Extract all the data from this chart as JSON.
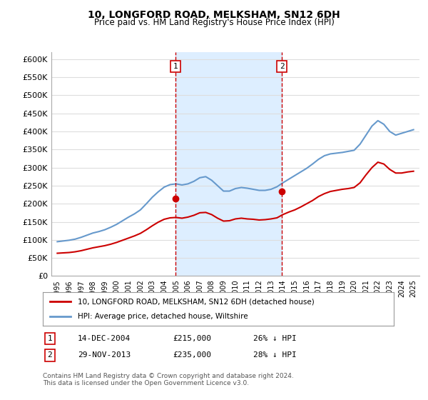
{
  "title": "10, LONGFORD ROAD, MELKSHAM, SN12 6DH",
  "subtitle": "Price paid vs. HM Land Registry's House Price Index (HPI)",
  "xlabel": "",
  "ylabel": "",
  "ylim": [
    0,
    620000
  ],
  "yticks": [
    0,
    50000,
    100000,
    150000,
    200000,
    250000,
    300000,
    350000,
    400000,
    450000,
    500000,
    550000,
    600000
  ],
  "ytick_labels": [
    "£0",
    "£50K",
    "£100K",
    "£150K",
    "£200K",
    "£250K",
    "£300K",
    "£350K",
    "£400K",
    "£450K",
    "£500K",
    "£550K",
    "£600K"
  ],
  "background_color": "#ffffff",
  "plot_bg_color": "#ffffff",
  "grid_color": "#dddddd",
  "hpi_color": "#6699cc",
  "price_color": "#cc0000",
  "shade_color": "#ddeeff",
  "vline_color": "#cc0000",
  "transaction1_x": 2004.96,
  "transaction1_y": 215000,
  "transaction1_label": "1",
  "transaction2_x": 2013.91,
  "transaction2_y": 235000,
  "transaction2_label": "2",
  "hpi_x": [
    1995,
    1995.5,
    1996,
    1996.5,
    1997,
    1997.5,
    1998,
    1998.5,
    1999,
    1999.5,
    2000,
    2000.5,
    2001,
    2001.5,
    2002,
    2002.5,
    2003,
    2003.5,
    2004,
    2004.5,
    2005,
    2005.5,
    2006,
    2006.5,
    2007,
    2007.5,
    2008,
    2008.5,
    2009,
    2009.5,
    2010,
    2010.5,
    2011,
    2011.5,
    2012,
    2012.5,
    2013,
    2013.5,
    2014,
    2014.5,
    2015,
    2015.5,
    2016,
    2016.5,
    2017,
    2017.5,
    2018,
    2018.5,
    2019,
    2019.5,
    2020,
    2020.5,
    2021,
    2021.5,
    2022,
    2022.5,
    2023,
    2023.5,
    2024,
    2024.5,
    2025
  ],
  "hpi_y": [
    95000,
    97000,
    99000,
    102000,
    107000,
    113000,
    119000,
    123000,
    128000,
    135000,
    143000,
    153000,
    163000,
    172000,
    183000,
    200000,
    218000,
    233000,
    246000,
    253000,
    255000,
    252000,
    255000,
    262000,
    272000,
    275000,
    265000,
    250000,
    235000,
    235000,
    242000,
    245000,
    243000,
    240000,
    237000,
    237000,
    240000,
    247000,
    258000,
    268000,
    278000,
    288000,
    298000,
    310000,
    323000,
    333000,
    338000,
    340000,
    342000,
    345000,
    348000,
    365000,
    390000,
    415000,
    430000,
    420000,
    400000,
    390000,
    395000,
    400000,
    405000
  ],
  "price_x": [
    1995,
    1995.5,
    1996,
    1996.5,
    1997,
    1997.5,
    1998,
    1998.5,
    1999,
    1999.5,
    2000,
    2000.5,
    2001,
    2001.5,
    2002,
    2002.5,
    2003,
    2003.5,
    2004,
    2004.5,
    2005,
    2005.5,
    2006,
    2006.5,
    2007,
    2007.5,
    2008,
    2008.5,
    2009,
    2009.5,
    2010,
    2010.5,
    2011,
    2011.5,
    2012,
    2012.5,
    2013,
    2013.5,
    2014,
    2014.5,
    2015,
    2015.5,
    2016,
    2016.5,
    2017,
    2017.5,
    2018,
    2018.5,
    2019,
    2019.5,
    2020,
    2020.5,
    2021,
    2021.5,
    2022,
    2022.5,
    2023,
    2023.5,
    2024,
    2024.5,
    2025
  ],
  "price_y": [
    63000,
    64000,
    65000,
    67000,
    70000,
    74000,
    78000,
    81000,
    84000,
    88000,
    93000,
    99000,
    105000,
    111000,
    118000,
    128000,
    139000,
    149000,
    157000,
    161000,
    162000,
    160000,
    163000,
    168000,
    175000,
    176000,
    170000,
    160000,
    152000,
    153000,
    158000,
    160000,
    158000,
    157000,
    155000,
    156000,
    158000,
    161000,
    170000,
    177000,
    183000,
    191000,
    200000,
    209000,
    220000,
    228000,
    234000,
    237000,
    240000,
    242000,
    245000,
    258000,
    280000,
    300000,
    315000,
    310000,
    295000,
    285000,
    285000,
    288000,
    290000
  ],
  "legend_label_red": "10, LONGFORD ROAD, MELKSHAM, SN12 6DH (detached house)",
  "legend_label_blue": "HPI: Average price, detached house, Wiltshire",
  "table_row1": [
    "1",
    "14-DEC-2004",
    "£215,000",
    "26% ↓ HPI"
  ],
  "table_row2": [
    "2",
    "29-NOV-2013",
    "£235,000",
    "28% ↓ HPI"
  ],
  "footer": "Contains HM Land Registry data © Crown copyright and database right 2024.\nThis data is licensed under the Open Government Licence v3.0.",
  "xticks": [
    1995,
    1996,
    1997,
    1998,
    1999,
    2000,
    2001,
    2002,
    2003,
    2004,
    2005,
    2006,
    2007,
    2008,
    2009,
    2010,
    2011,
    2012,
    2013,
    2014,
    2015,
    2016,
    2017,
    2018,
    2019,
    2020,
    2021,
    2022,
    2023,
    2024,
    2025
  ],
  "shade_xmin": 2004.96,
  "shade_xmax": 2013.91
}
